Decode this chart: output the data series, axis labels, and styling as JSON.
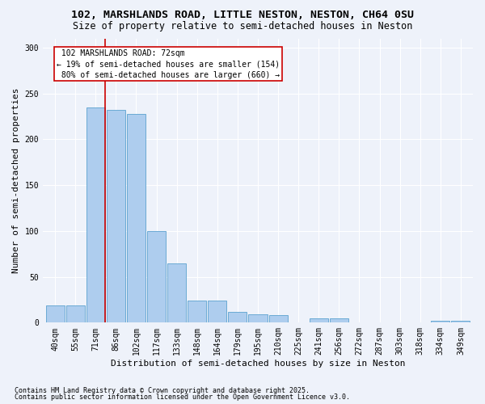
{
  "title_line1": "102, MARSHLANDS ROAD, LITTLE NESTON, NESTON, CH64 0SU",
  "title_line2": "Size of property relative to semi-detached houses in Neston",
  "xlabel": "Distribution of semi-detached houses by size in Neston",
  "ylabel": "Number of semi-detached properties",
  "categories": [
    "40sqm",
    "55sqm",
    "71sqm",
    "86sqm",
    "102sqm",
    "117sqm",
    "133sqm",
    "148sqm",
    "164sqm",
    "179sqm",
    "195sqm",
    "210sqm",
    "225sqm",
    "241sqm",
    "256sqm",
    "272sqm",
    "287sqm",
    "303sqm",
    "318sqm",
    "334sqm",
    "349sqm"
  ],
  "values": [
    19,
    19,
    235,
    232,
    228,
    100,
    65,
    24,
    24,
    12,
    9,
    8,
    0,
    5,
    5,
    0,
    0,
    0,
    0,
    2,
    2
  ],
  "bar_color": "#AECDEE",
  "bar_edge_color": "#6AAAD4",
  "property_line_index": 2,
  "property_label": "102 MARSHLANDS ROAD: 72sqm",
  "pct_smaller": "19% of semi-detached houses are smaller (154)",
  "pct_larger": "80% of semi-detached houses are larger (660)",
  "annotation_box_color": "#CC0000",
  "ylim": [
    0,
    310
  ],
  "yticks": [
    0,
    50,
    100,
    150,
    200,
    250,
    300
  ],
  "footnote_line1": "Contains HM Land Registry data © Crown copyright and database right 2025.",
  "footnote_line2": "Contains public sector information licensed under the Open Government Licence v3.0.",
  "bg_color": "#EEF2FA",
  "grid_color": "#FFFFFF",
  "title_fontsize": 9.5,
  "subtitle_fontsize": 8.5,
  "label_fontsize": 8,
  "tick_fontsize": 7,
  "annotation_fontsize": 7,
  "footnote_fontsize": 6
}
